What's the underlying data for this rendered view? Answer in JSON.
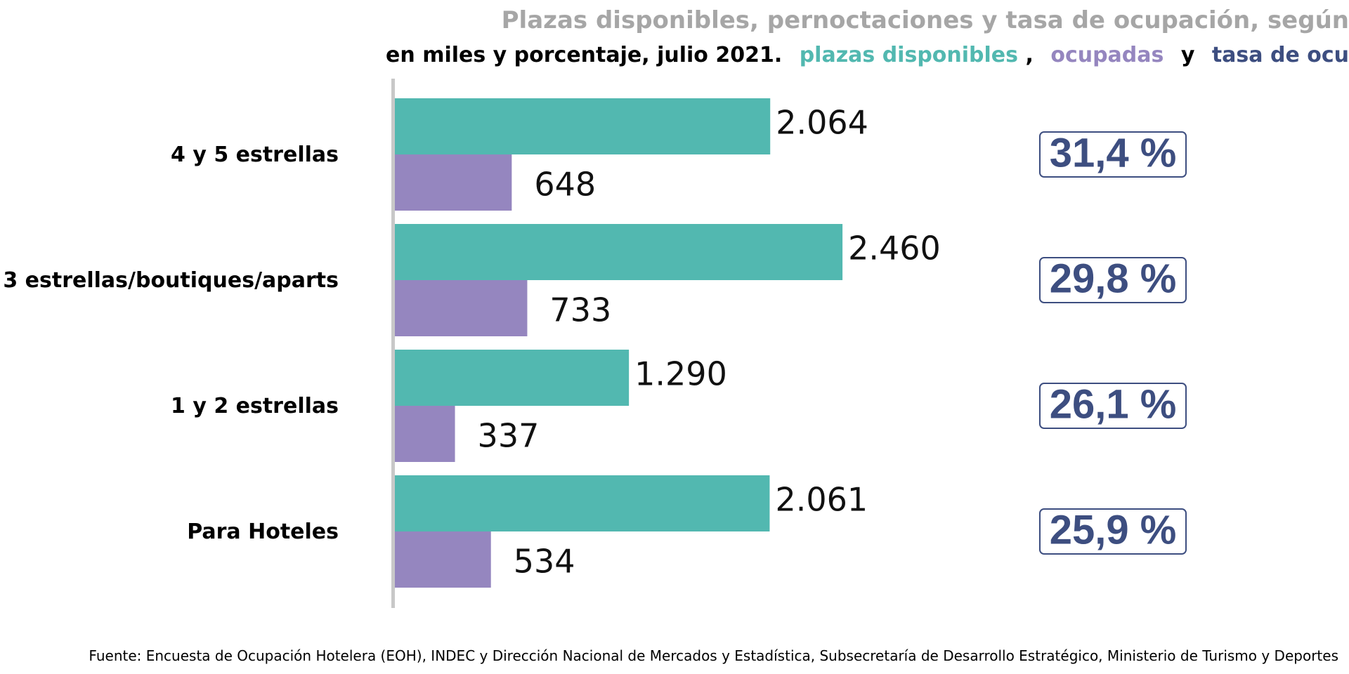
{
  "title": "Plazas disponibles, pernoctaciones y tasa de ocupación, según",
  "subtitle": {
    "prefix": "en miles y porcentaje, julio 2021.",
    "legend": [
      {
        "text": "plazas disponibles",
        "color": "#52b8b0"
      },
      {
        "text": ",",
        "color": "#000000"
      },
      {
        "text": "ocupadas",
        "color": "#9586bf"
      },
      {
        "text": "y",
        "color": "#000000"
      },
      {
        "text": "tasa de ocu",
        "color": "#3d4e80"
      }
    ]
  },
  "colors": {
    "available": "#52b8b0",
    "occupied": "#9586bf",
    "rate": "#3d4e80",
    "title": "#a6a6a6",
    "axis": "#c8c8c8"
  },
  "chart_data": {
    "type": "bar",
    "orientation": "horizontal",
    "categories": [
      "4 y 5 estrellas",
      "3 estrellas/boutiques/aparts",
      "1 y 2 estrellas",
      "Para Hoteles"
    ],
    "series": [
      {
        "name": "plazas disponibles",
        "values": [
          2064,
          2460,
          1290,
          2061
        ],
        "labels": [
          "2.064",
          "2.460",
          "1.290",
          "2.061"
        ]
      },
      {
        "name": "ocupadas",
        "values": [
          648,
          733,
          337,
          534
        ],
        "labels": [
          "648",
          "733",
          "337",
          "534"
        ]
      }
    ],
    "occupancy_rate": [
      {
        "value": 31.4,
        "label": "31,4 %"
      },
      {
        "value": 29.8,
        "label": "29,8 %"
      },
      {
        "value": 26.1,
        "label": "26,1 %"
      },
      {
        "value": 25.9,
        "label": "25,9 %"
      }
    ],
    "xlim": [
      0,
      3000
    ],
    "grid": false,
    "legend": "subtitle"
  },
  "source": "Fuente: Encuesta de Ocupación Hotelera (EOH), INDEC y Dirección Nacional de Mercados y Estadística, Subsecretaría de Desarrollo Estratégico, Ministerio de Turismo y Deportes"
}
